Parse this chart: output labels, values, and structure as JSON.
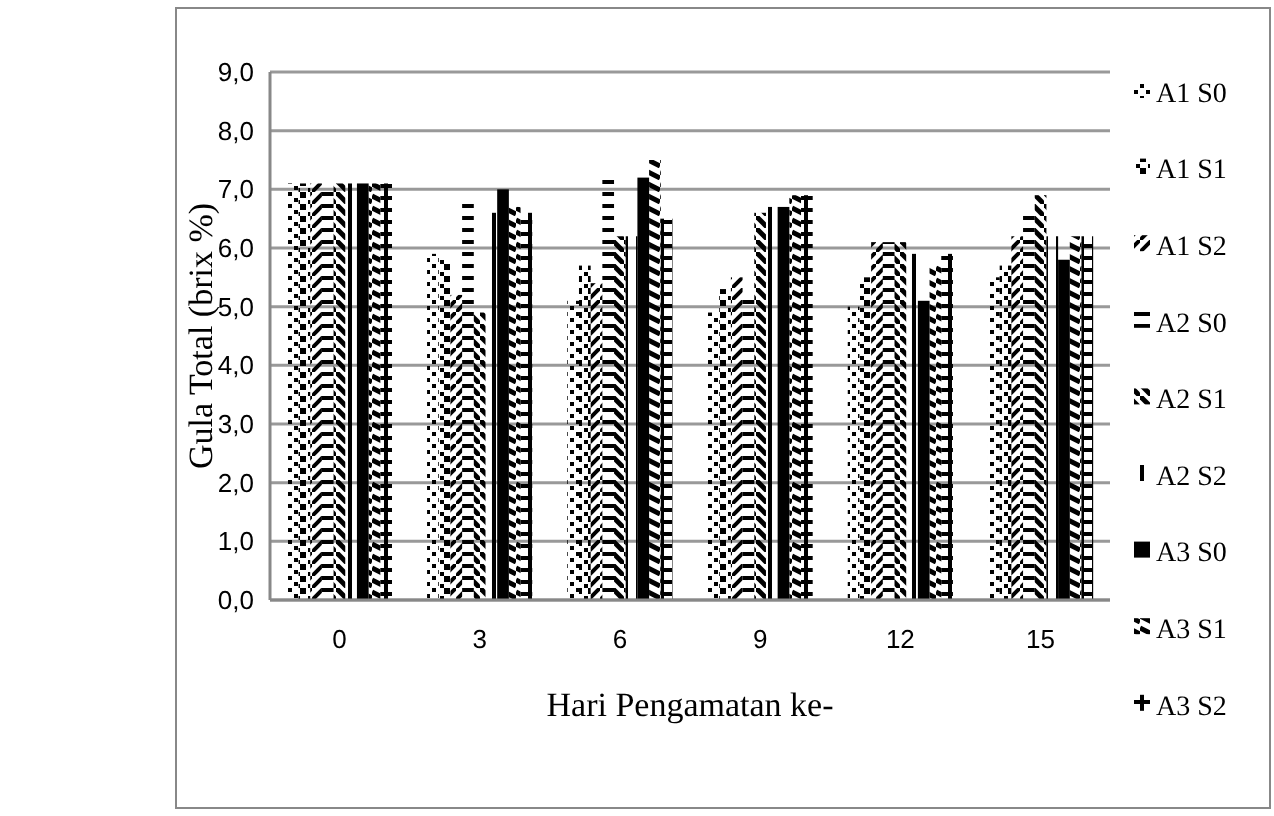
{
  "chart_data": {
    "type": "bar",
    "xlabel": "Hari Pengamatan ke-",
    "ylabel": "Gula Total (brix %)",
    "categories": [
      "0",
      "3",
      "6",
      "9",
      "12",
      "15"
    ],
    "ylim": [
      0,
      9
    ],
    "yticks": [
      {
        "value": 0,
        "label": "0,0"
      },
      {
        "value": 1,
        "label": "1,0"
      },
      {
        "value": 2,
        "label": "2,0"
      },
      {
        "value": 3,
        "label": "3,0"
      },
      {
        "value": 4,
        "label": "4,0"
      },
      {
        "value": 5,
        "label": "5,0"
      },
      {
        "value": 6,
        "label": "6,0"
      },
      {
        "value": 7,
        "label": "7,0"
      },
      {
        "value": 8,
        "label": "8,0"
      },
      {
        "value": 9,
        "label": "9,0"
      }
    ],
    "grid": "y",
    "legend": "right",
    "series": [
      {
        "name": "A1 S0",
        "color": "#000000",
        "values": [
          7.1,
          5.9,
          5.1,
          4.9,
          5.0,
          5.5
        ]
      },
      {
        "name": "A1 S1",
        "color": "#000000",
        "values": [
          7.1,
          5.8,
          5.7,
          5.3,
          5.5,
          5.7
        ]
      },
      {
        "name": "A1 S2",
        "color": "#000000",
        "values": [
          7.1,
          5.2,
          5.4,
          5.5,
          6.1,
          6.2
        ]
      },
      {
        "name": "A2 S0",
        "color": "#000000",
        "values": [
          7.0,
          6.8,
          7.2,
          5.2,
          6.1,
          6.6
        ]
      },
      {
        "name": "A2 S1",
        "color": "#000000",
        "values": [
          7.1,
          4.9,
          6.2,
          6.6,
          6.1,
          6.9
        ]
      },
      {
        "name": "A2 S2",
        "color": "#000000",
        "values": [
          7.1,
          6.6,
          6.2,
          6.7,
          5.9,
          6.2
        ]
      },
      {
        "name": "A3 S0",
        "color": "#000000",
        "values": [
          7.1,
          7.0,
          7.2,
          6.7,
          5.1,
          5.8
        ]
      },
      {
        "name": "A3 S1",
        "color": "#000000",
        "values": [
          7.1,
          6.7,
          7.5,
          6.9,
          5.7,
          6.2
        ]
      },
      {
        "name": "A3 S2",
        "color": "#000000",
        "values": [
          7.1,
          6.6,
          6.5,
          6.9,
          5.9,
          6.2
        ]
      }
    ]
  }
}
